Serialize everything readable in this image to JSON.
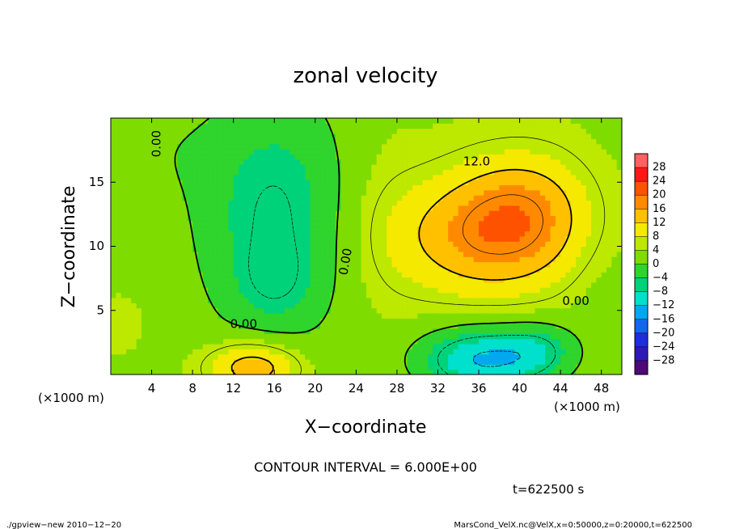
{
  "chart_data": {
    "type": "heatmap",
    "title": "zonal velocity",
    "xlabel": "X−coordinate",
    "ylabel": "Z−coordinate",
    "x_unit": "(×1000 m)",
    "y_unit": "(×1000 m)",
    "xlim": [
      0,
      50
    ],
    "ylim": [
      0,
      20
    ],
    "x_ticks": [
      4,
      8,
      12,
      16,
      20,
      24,
      28,
      32,
      36,
      40,
      44,
      48
    ],
    "y_ticks": [
      5,
      10,
      15
    ],
    "contour_interval_text": "CONTOUR INTERVAL = 6.000E+00",
    "time_text": "t=622500 s",
    "contour_labels": [
      {
        "text": "0.00",
        "x": 4.5,
        "y": 18.0,
        "angle": -90
      },
      {
        "text": "0.00",
        "x": 13.0,
        "y": 3.9,
        "angle": 0
      },
      {
        "text": "0.00",
        "x": 23.0,
        "y": 8.8,
        "angle": -80
      },
      {
        "text": "12.0",
        "x": 35.8,
        "y": 16.6,
        "angle": 0
      },
      {
        "text": "0.00",
        "x": 45.5,
        "y": 5.7,
        "angle": 0
      }
    ],
    "colorbar": {
      "labels": [
        "28",
        "24",
        "20",
        "16",
        "12",
        "8",
        "4",
        "0",
        "−4",
        "−8",
        "−12",
        "−16",
        "−20",
        "−24",
        "−28"
      ],
      "colors": [
        "#ff6060",
        "#ff1818",
        "#ff5200",
        "#ff8a00",
        "#ffc000",
        "#f5e900",
        "#bde800",
        "#7fdc00",
        "#2fd42c",
        "#00d27a",
        "#00e0cc",
        "#00a8f0",
        "#1466f0",
        "#1f2ce0",
        "#3018b8",
        "#500878"
      ]
    },
    "fields": {
      "background": 3.5,
      "blobs": [
        {
          "x": 37.0,
          "y": 10.8,
          "sx": 6.5,
          "sy": 3.3,
          "amp": 13.5
        },
        {
          "x": 40.5,
          "y": 13.5,
          "sx": 4.5,
          "sy": 3.0,
          "amp": 7.0
        },
        {
          "x": 14.0,
          "y": 0.6,
          "sx": 3.2,
          "sy": 1.4,
          "amp": 13.0
        },
        {
          "x": 36.5,
          "y": 1.2,
          "sx": 4.5,
          "sy": 1.8,
          "amp": -16.0
        },
        {
          "x": 42.0,
          "y": 2.0,
          "sx": 2.5,
          "sy": 1.5,
          "amp": -6.0
        },
        {
          "x": 16.0,
          "y": 12.5,
          "sx": 5.5,
          "sy": 7.0,
          "amp": -10.0
        },
        {
          "x": 16.0,
          "y": 7.0,
          "sx": 2.8,
          "sy": 2.2,
          "amp": -3.5
        },
        {
          "x": 4.5,
          "y": 17.5,
          "sx": 4.0,
          "sy": 3.0,
          "amp": -2.0
        },
        {
          "x": 1.0,
          "y": 4.0,
          "sx": 1.5,
          "sy": 1.5,
          "amp": 2.0
        },
        {
          "x": 26.0,
          "y": 12.0,
          "sx": 3.0,
          "sy": 6.0,
          "amp": 2.0
        },
        {
          "x": 48.0,
          "y": 9.0,
          "sx": 3.0,
          "sy": 5.0,
          "amp": -2.0
        }
      ]
    }
  },
  "footer": {
    "left": "./gpview−new  2010−12−20",
    "right": "MarsCond_VelX.nc@VelX,x=0:50000,z=0:20000,t=622500"
  }
}
